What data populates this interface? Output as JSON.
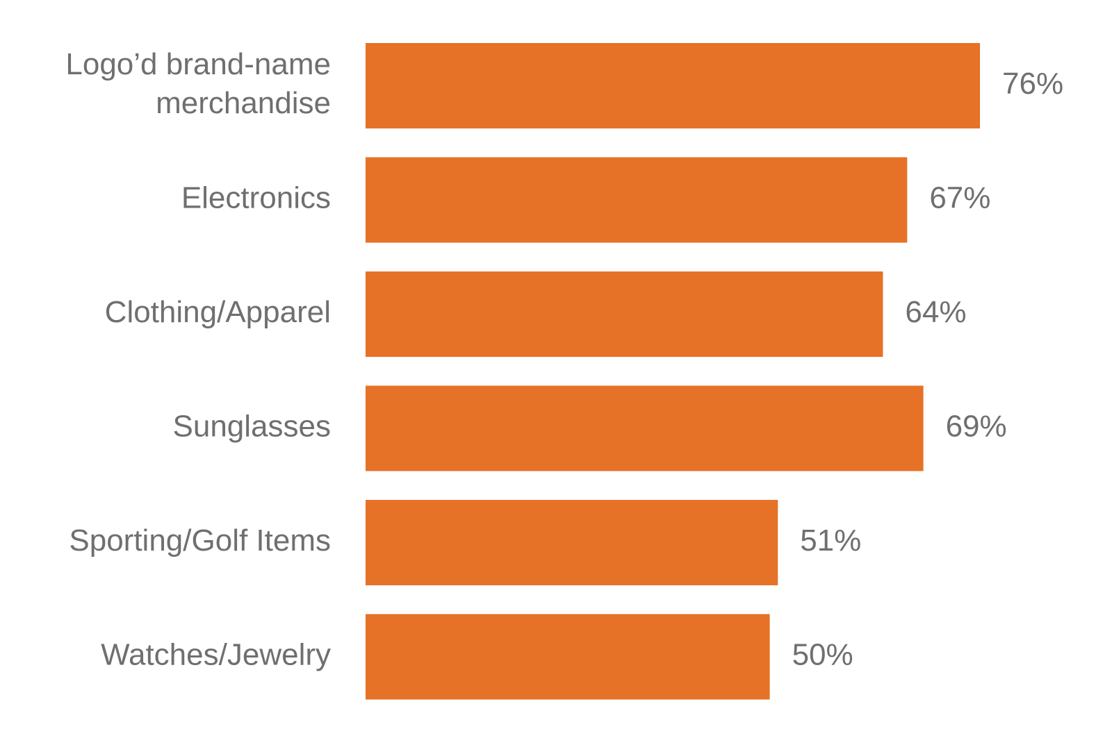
{
  "chart_data": {
    "type": "bar",
    "orientation": "horizontal",
    "categories": [
      [
        "Logo’d brand-name",
        "merchandise"
      ],
      [
        "Electronics"
      ],
      [
        "Clothing/Apparel"
      ],
      [
        "Sunglasses"
      ],
      [
        "Sporting/Golf Items"
      ],
      [
        "Watches/Jewelry"
      ]
    ],
    "values": [
      76,
      67,
      64,
      69,
      51,
      50
    ],
    "value_labels": [
      "76%",
      "67%",
      "64%",
      "69%",
      "51%",
      "50%"
    ],
    "unit": "%",
    "xlim": [
      0,
      76
    ],
    "grid": false,
    "legend": "none",
    "bar_color": "#e57226",
    "text_color": "#6f6f6f"
  }
}
